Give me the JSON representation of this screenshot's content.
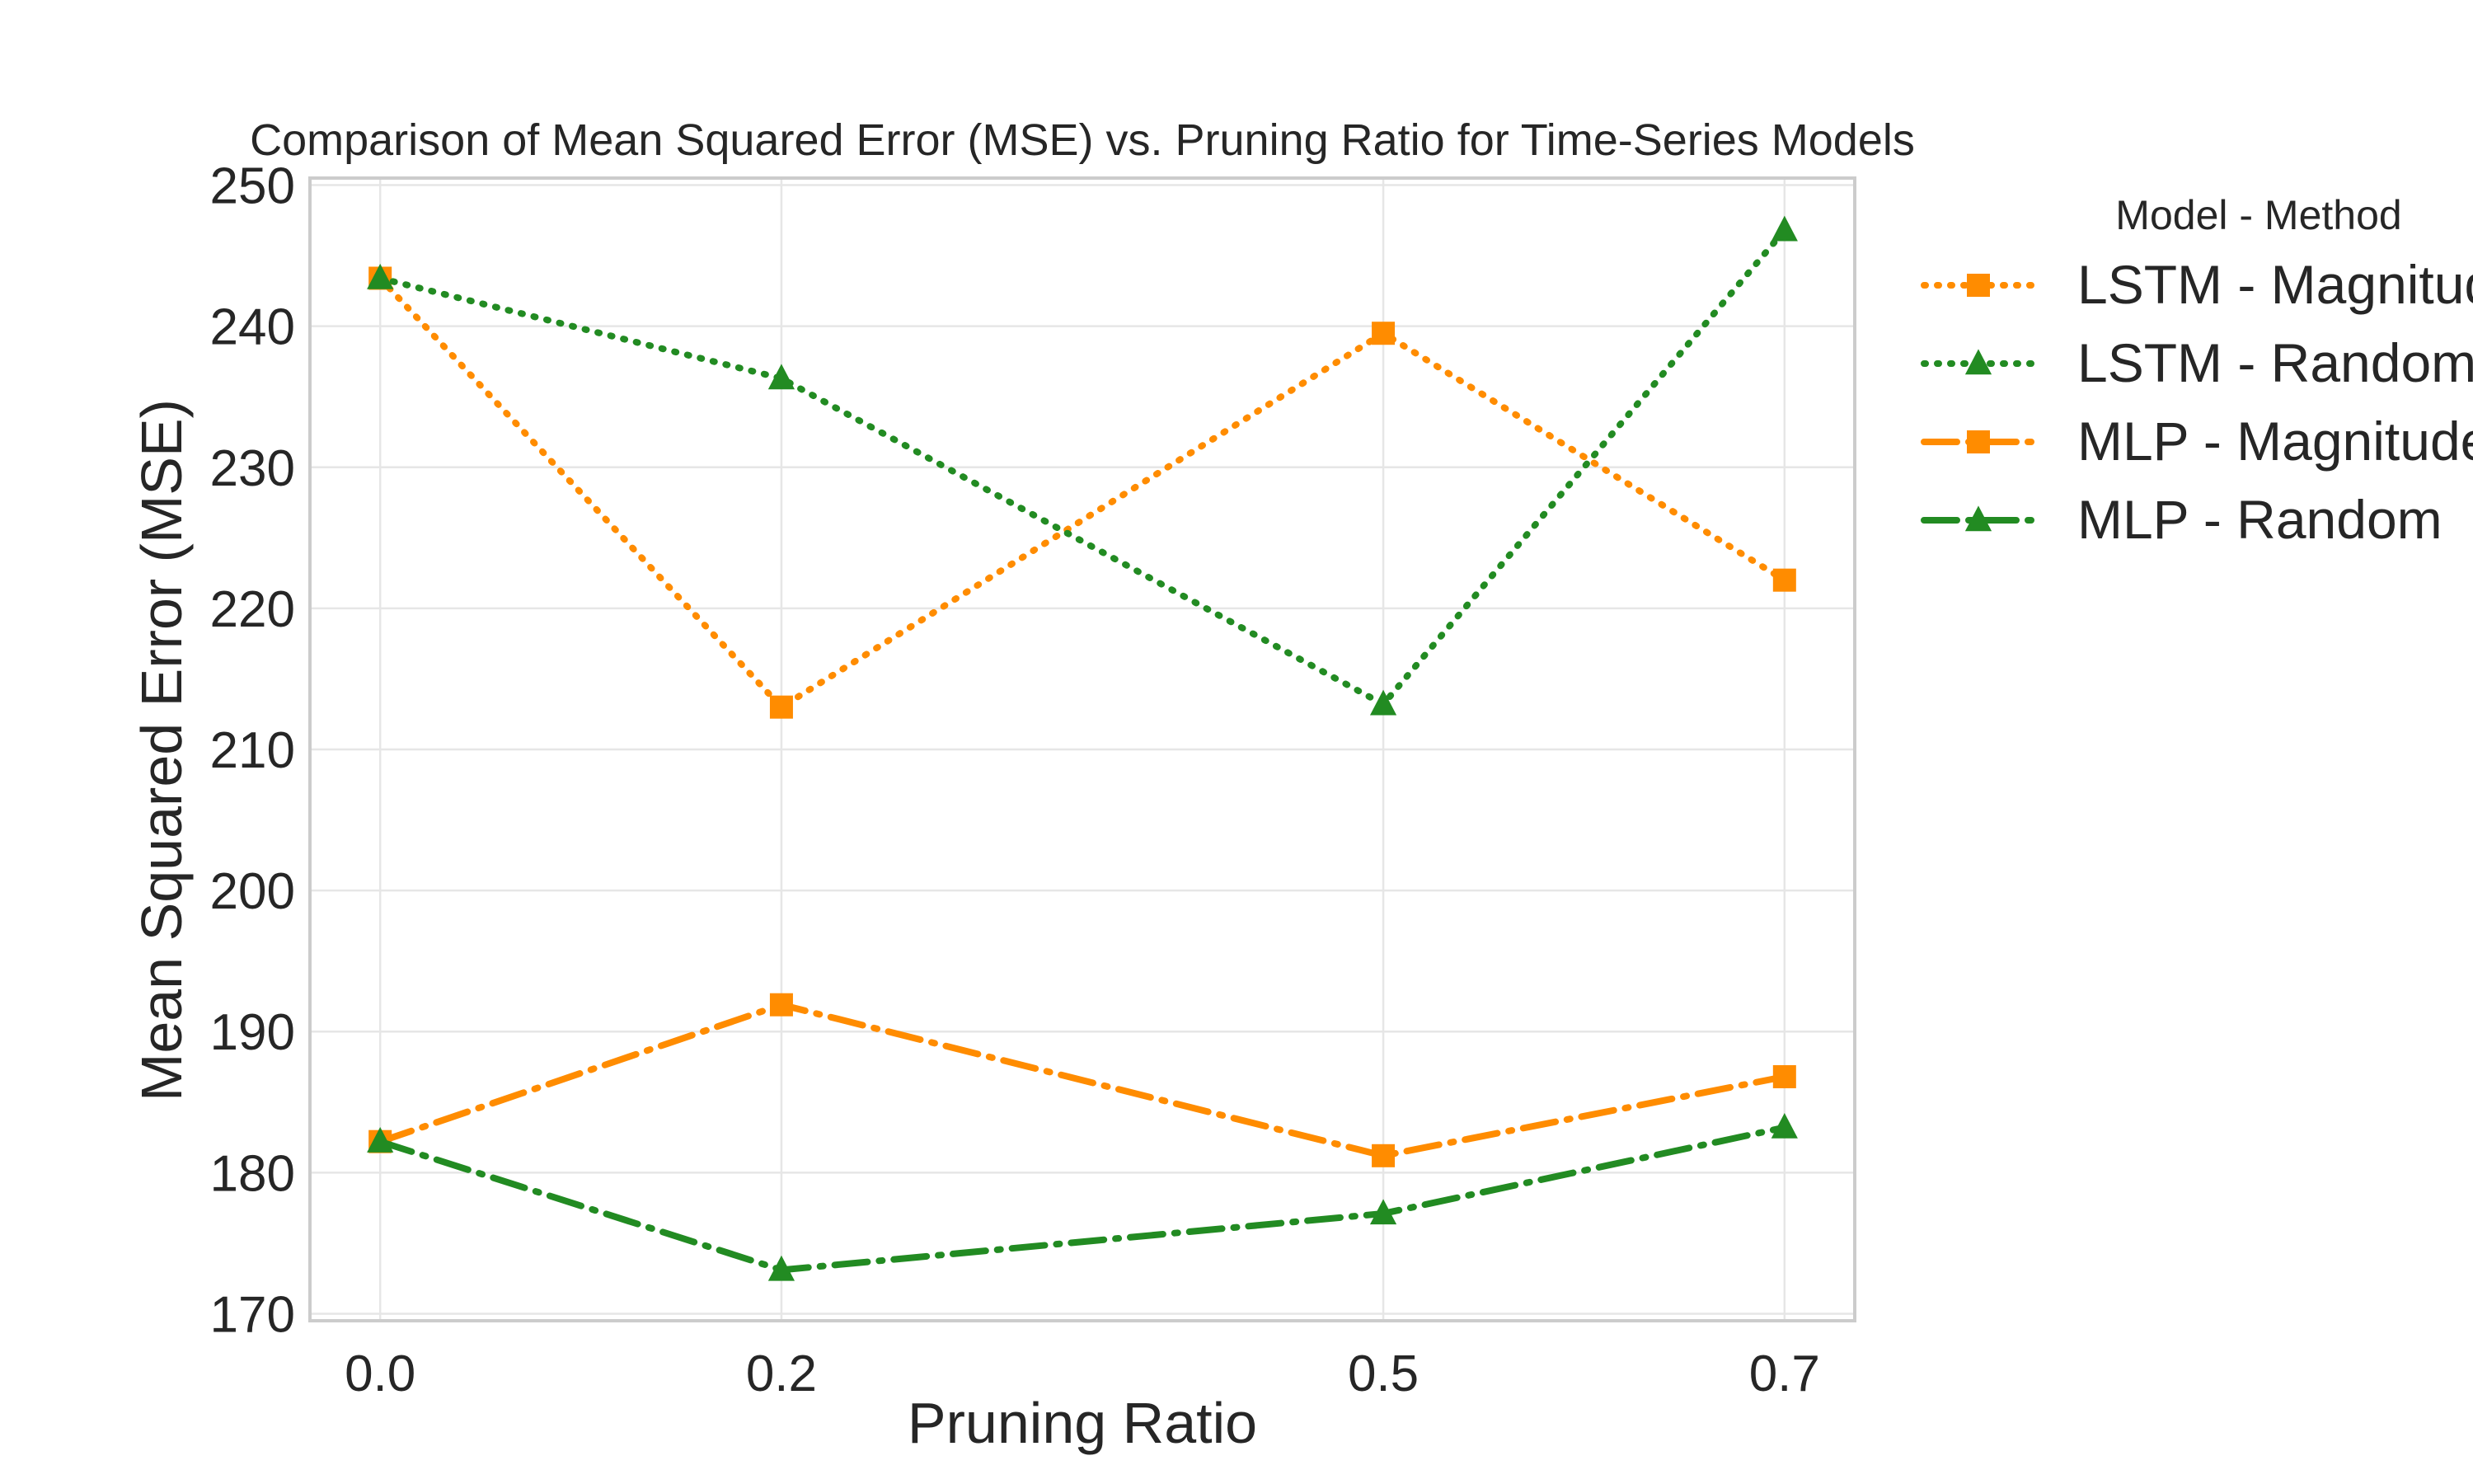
{
  "chart_data": {
    "type": "line",
    "title": "Comparison of Mean Squared Error (MSE) vs. Pruning Ratio for Time-Series Models",
    "xlabel": "Pruning Ratio",
    "ylabel": "Mean Squared Error (MSE)",
    "x": [
      0.0,
      0.2,
      0.5,
      0.7
    ],
    "x_tick_labels": [
      "0.0",
      "0.2",
      "0.5",
      "0.7"
    ],
    "y_ticks": [
      170,
      180,
      190,
      200,
      210,
      220,
      230,
      240,
      250
    ],
    "xlim": [
      -0.035,
      0.735
    ],
    "ylim": [
      169.5,
      250.5
    ],
    "grid": true,
    "legend": {
      "title": "Model - Method",
      "placement": "outside-right"
    },
    "series": [
      {
        "name": "LSTM - Magnitude",
        "values": [
          243.4,
          213.0,
          239.5,
          222.0
        ],
        "color": "#ff8c00",
        "marker": "square",
        "linestyle": "dotted"
      },
      {
        "name": "LSTM - Random",
        "values": [
          243.4,
          236.3,
          213.2,
          246.8
        ],
        "color": "#228b22",
        "marker": "triangle",
        "linestyle": "dotted"
      },
      {
        "name": "MLP - Magnitude",
        "values": [
          182.2,
          191.9,
          181.2,
          186.8
        ],
        "color": "#ff8c00",
        "marker": "square",
        "linestyle": "dashdot"
      },
      {
        "name": "MLP - Random",
        "values": [
          182.2,
          173.1,
          177.1,
          183.2
        ],
        "color": "#228b22",
        "marker": "triangle",
        "linestyle": "dashdot"
      }
    ]
  }
}
